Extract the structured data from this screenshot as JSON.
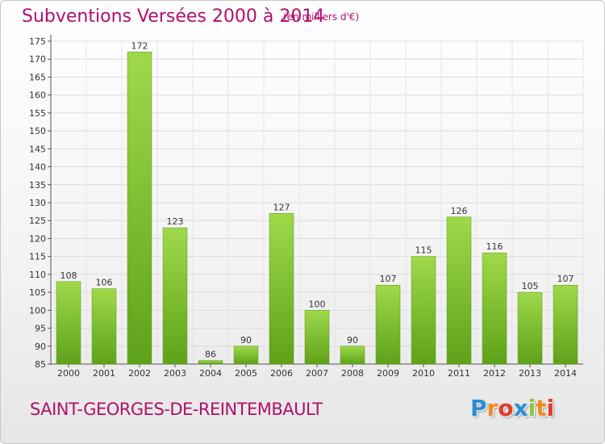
{
  "header": {
    "title": "Subventions Versées 2000 à 2014",
    "subtitle": "(en milliers d'€)"
  },
  "footer": {
    "place": "SAINT-GEORGES-DE-REINTEMBAULT",
    "logo_letters": [
      "P",
      "r",
      "o",
      "x",
      "i",
      "t",
      "i"
    ],
    "logo_colors": [
      "#2a8fd6",
      "#f08a1c",
      "#e33b2c",
      "#2a8fd6",
      "#8cc63f",
      "#f08a1c",
      "#e33b2c"
    ]
  },
  "colors": {
    "bar_top": "#9fd94a",
    "bar_bottom": "#5ea21a",
    "title": "#b0106a"
  },
  "chart_data": {
    "type": "bar",
    "title": "Subventions Versées 2000 à 2014",
    "categories": [
      "2000",
      "2001",
      "2002",
      "2003",
      "2004",
      "2005",
      "2006",
      "2007",
      "2008",
      "2009",
      "2010",
      "2011",
      "2012",
      "2013",
      "2014"
    ],
    "values": [
      108,
      106,
      172,
      123,
      86,
      90,
      127,
      100,
      90,
      107,
      115,
      126,
      116,
      105,
      107
    ],
    "ylim": [
      85,
      175
    ],
    "yticks": [
      85,
      90,
      95,
      100,
      105,
      110,
      115,
      120,
      125,
      130,
      135,
      140,
      145,
      150,
      155,
      160,
      165,
      170,
      175
    ],
    "grid": true,
    "xlabel": "",
    "ylabel": ""
  }
}
